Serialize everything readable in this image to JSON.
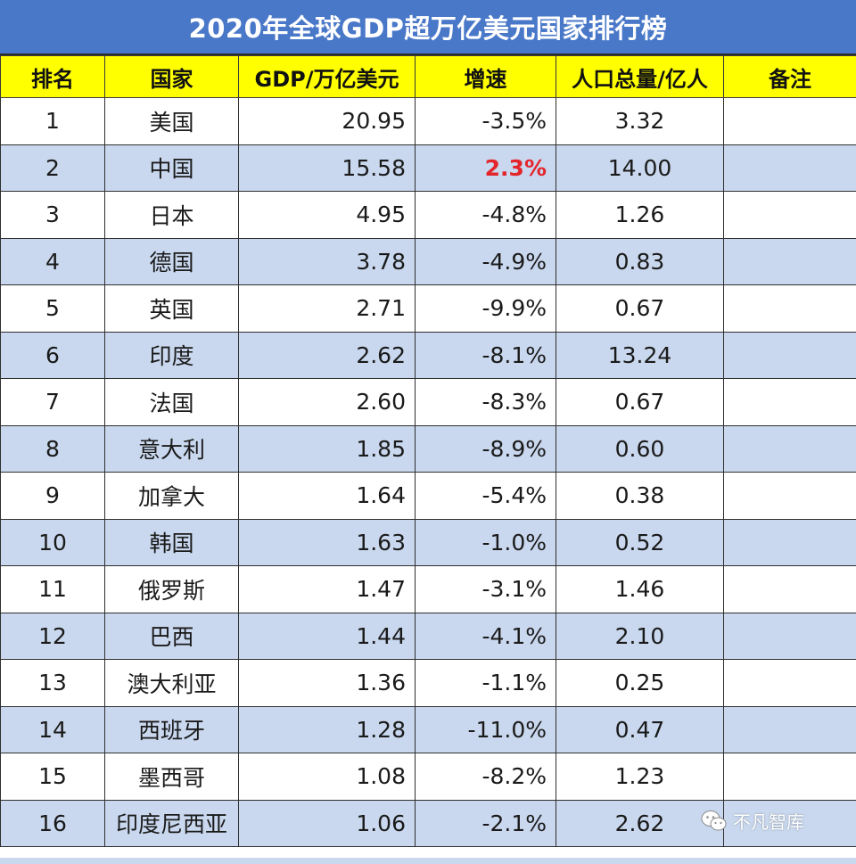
{
  "title": "2020年全球GDP超万亿美元国家排行榜",
  "headers": {
    "rank": "排名",
    "country": "国家",
    "gdp": "GDP/万亿美元",
    "growth": "增速",
    "population": "人口总量/亿人",
    "note": "备注"
  },
  "rows": [
    {
      "rank": "1",
      "country": "美国",
      "gdp": "20.95",
      "growth": "-3.5%",
      "population": "3.32",
      "note": ""
    },
    {
      "rank": "2",
      "country": "中国",
      "gdp": "15.58",
      "growth": "2.3%",
      "population": "14.00",
      "note": ""
    },
    {
      "rank": "3",
      "country": "日本",
      "gdp": "4.95",
      "growth": "-4.8%",
      "population": "1.26",
      "note": ""
    },
    {
      "rank": "4",
      "country": "德国",
      "gdp": "3.78",
      "growth": "-4.9%",
      "population": "0.83",
      "note": ""
    },
    {
      "rank": "5",
      "country": "英国",
      "gdp": "2.71",
      "growth": "-9.9%",
      "population": "0.67",
      "note": ""
    },
    {
      "rank": "6",
      "country": "印度",
      "gdp": "2.62",
      "growth": "-8.1%",
      "population": "13.24",
      "note": ""
    },
    {
      "rank": "7",
      "country": "法国",
      "gdp": "2.60",
      "growth": "-8.3%",
      "population": "0.67",
      "note": ""
    },
    {
      "rank": "8",
      "country": "意大利",
      "gdp": "1.85",
      "growth": "-8.9%",
      "population": "0.60",
      "note": ""
    },
    {
      "rank": "9",
      "country": "加拿大",
      "gdp": "1.64",
      "growth": "-5.4%",
      "population": "0.38",
      "note": ""
    },
    {
      "rank": "10",
      "country": "韩国",
      "gdp": "1.63",
      "growth": "-1.0%",
      "population": "0.52",
      "note": ""
    },
    {
      "rank": "11",
      "country": "俄罗斯",
      "gdp": "1.47",
      "growth": "-3.1%",
      "population": "1.46",
      "note": ""
    },
    {
      "rank": "12",
      "country": "巴西",
      "gdp": "1.44",
      "growth": "-4.1%",
      "population": "2.10",
      "note": ""
    },
    {
      "rank": "13",
      "country": "澳大利亚",
      "gdp": "1.36",
      "growth": "-1.1%",
      "population": "0.25",
      "note": ""
    },
    {
      "rank": "14",
      "country": "西班牙",
      "gdp": "1.28",
      "growth": "-11.0%",
      "population": "0.47",
      "note": ""
    },
    {
      "rank": "15",
      "country": "墨西哥",
      "gdp": "1.08",
      "growth": "-8.2%",
      "population": "1.23",
      "note": ""
    },
    {
      "rank": "16",
      "country": "印度尼西亚",
      "gdp": "1.06",
      "growth": "-2.1%",
      "population": "2.62",
      "note": ""
    }
  ],
  "highlight_row_rank": "2",
  "watermark": {
    "icon": "wechat-icon",
    "text": "不凡智库"
  },
  "colors": {
    "title_bg": "#4a78c9",
    "header_bg": "#ffff00",
    "stripe": "#c9d8ee",
    "highlight": "#e4252c"
  }
}
